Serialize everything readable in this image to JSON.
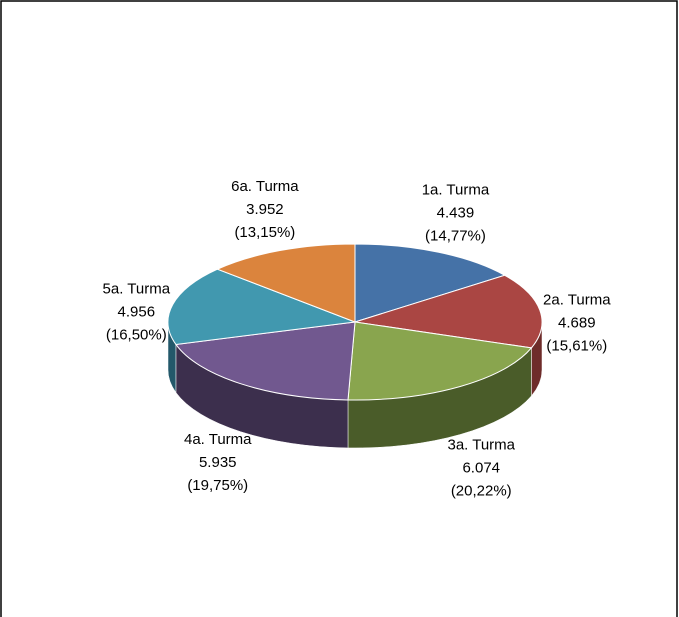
{
  "chart_data": {
    "type": "pie",
    "categories": [
      "1a. Turma",
      "2a. Turma",
      "3a. Turma",
      "4a. Turma",
      "5a. Turma",
      "6a. Turma"
    ],
    "values": [
      4439,
      4689,
      6074,
      5935,
      4956,
      3952
    ],
    "value_labels": [
      "4.439",
      "4.689",
      "6.074",
      "5.935",
      "4.956",
      "3.952"
    ],
    "percent_labels": [
      "(14,77%)",
      "(15,61%)",
      "(20,22%)",
      "(19,75%)",
      "(16,50%)",
      "(13,15%)"
    ],
    "colors": [
      "#4572a7",
      "#aa4643",
      "#89a54e",
      "#71588f",
      "#4198af",
      "#db843d"
    ],
    "side_colors": [
      "#2e4d73",
      "#6e2c2a",
      "#4a5c29",
      "#3c2f4d",
      "#23586a",
      "#8a5022"
    ]
  }
}
